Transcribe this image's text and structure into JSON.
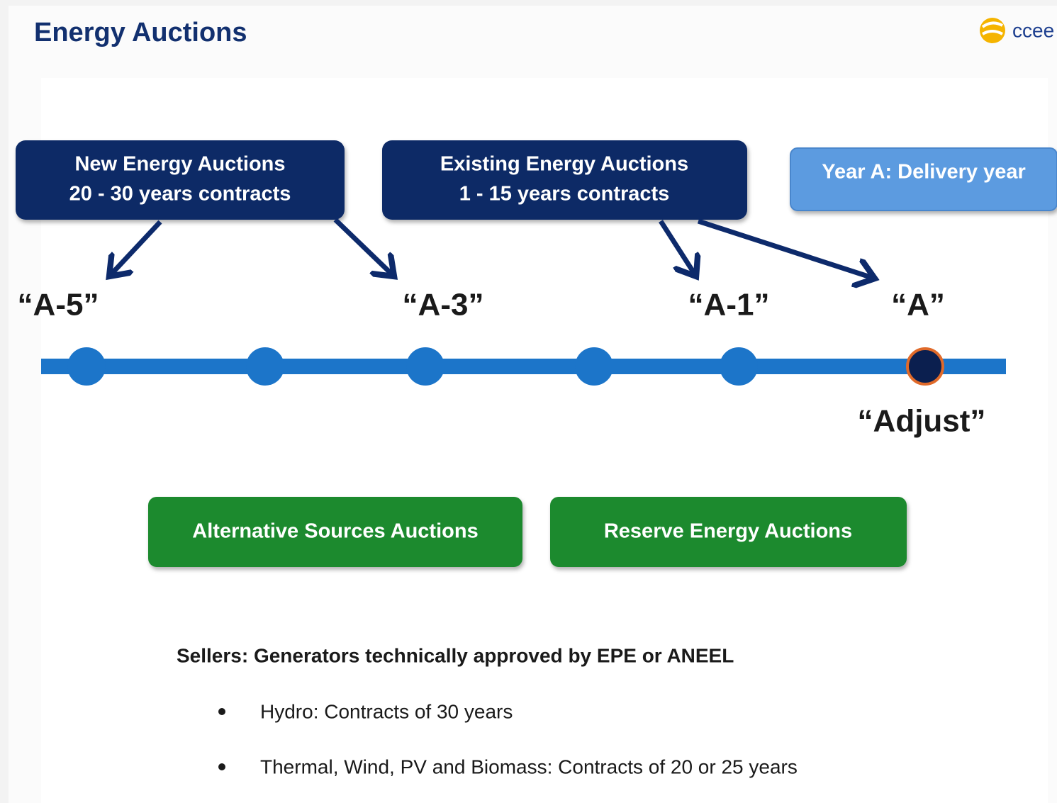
{
  "header": {
    "title": "Energy Auctions",
    "logo": "ccee"
  },
  "boxes": [
    {
      "lines": [
        "New Energy Auctions",
        "20 - 30 years contracts"
      ]
    },
    {
      "lines": [
        "Existing Energy Auctions",
        "1 - 15 years contracts"
      ]
    },
    {
      "lines": [
        "Year A: Delivery year"
      ]
    }
  ],
  "timeline": {
    "labels": [
      "“A-5”",
      "“A-3”",
      "“A-1”",
      "“A”"
    ],
    "adjust": "“Adjust”"
  },
  "green_boxes": [
    "Alternative Sources Auctions",
    "Reserve Energy Auctions"
  ],
  "sellers": {
    "text": "Sellers: Generators technically approved by EPE or ANEEL",
    "bullets": [
      "Hydro: Contracts of 30 years",
      "Thermal, Wind, PV and Biomass: Contracts of 20 or 25 years"
    ]
  }
}
